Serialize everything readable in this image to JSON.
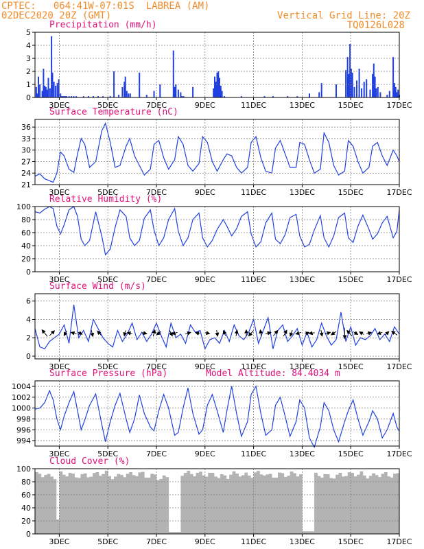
{
  "header": {
    "line1_left": "CPTEC:   064:41W-07:01S  LABREA (AM)",
    "line2_left": "02DEC2020 20Z (GMT)",
    "line1_right": "Vertical Grid Line: 20Z",
    "line2_right": "TQ0126L028"
  },
  "colors": {
    "header": "#f28c28",
    "title": "#e0107a",
    "line": "#1f3fe0",
    "bar": "#1f3fe0",
    "cloud": "#b3b3b3",
    "grid": "#7f7f7f",
    "axis": "#000000",
    "wind_arrow": "#000000"
  },
  "x_ticks": [
    "3DEC",
    "5DEC",
    "7DEC",
    "9DEC",
    "11DEC",
    "13DEC",
    "15DEC",
    "17DEC"
  ],
  "chart_data": [
    {
      "id": "precip",
      "type": "bar",
      "title": "Precipitation (mm/h)",
      "ylim": [
        0,
        5
      ],
      "yticks": [
        0,
        1,
        2,
        3,
        4,
        5
      ],
      "time_range_days": [
        2.0,
        17.0
      ],
      "grid": "dotted",
      "x": [
        2.05,
        2.1,
        2.14,
        2.2,
        2.3,
        2.35,
        2.4,
        2.45,
        2.5,
        2.55,
        2.62,
        2.68,
        2.72,
        2.78,
        2.85,
        2.92,
        2.98,
        3.05,
        3.1,
        3.15,
        3.2,
        3.25,
        3.3,
        3.4,
        3.5,
        3.6,
        3.7,
        4.0,
        4.2,
        4.4,
        4.6,
        4.8,
        5.1,
        5.25,
        5.45,
        5.6,
        5.68,
        5.72,
        5.78,
        5.85,
        5.92,
        6.3,
        6.6,
        6.9,
        7.15,
        7.7,
        7.75,
        7.8,
        7.9,
        8.0,
        8.05,
        8.12,
        8.5,
        9.35,
        9.4,
        9.45,
        9.5,
        9.55,
        9.6,
        9.65,
        9.7,
        9.8,
        10.5,
        11.45,
        11.8,
        12.4,
        12.8,
        13.3,
        13.7,
        13.8,
        14.4,
        14.8,
        14.87,
        14.92,
        14.97,
        15.02,
        15.07,
        15.15,
        15.25,
        15.35,
        15.45,
        15.55,
        15.65,
        15.8,
        15.9,
        15.95,
        16.0,
        16.05,
        16.12,
        16.22,
        16.5,
        16.6,
        16.75,
        16.8,
        16.85,
        16.9,
        16.95,
        17.0
      ],
      "values": [
        0.8,
        0.3,
        1.6,
        1.0,
        0.5,
        2.2,
        0.9,
        0.8,
        0.6,
        1.5,
        0.7,
        4.7,
        1.9,
        1.2,
        0.9,
        1.1,
        1.4,
        0.3,
        0.1,
        0.1,
        0.1,
        0.1,
        0.1,
        0.1,
        0.1,
        0.1,
        0.1,
        0.1,
        0.1,
        0.1,
        0.1,
        0.1,
        0.1,
        2.0,
        0.2,
        0.8,
        1.2,
        1.6,
        0.5,
        0.3,
        0.3,
        1.9,
        0.2,
        0.5,
        1.0,
        3.6,
        0.8,
        1.0,
        0.6,
        0.4,
        0.1,
        0.1,
        0.8,
        0.7,
        1.6,
        1.2,
        1.9,
        2.0,
        1.5,
        0.9,
        0.5,
        0.1,
        0.1,
        0.1,
        0.1,
        0.1,
        0.1,
        0.3,
        0.4,
        1.1,
        1.0,
        2.1,
        3.1,
        1.8,
        4.1,
        2.2,
        1.9,
        0.8,
        1.3,
        2.2,
        0.7,
        1.2,
        1.4,
        0.6,
        1.8,
        2.6,
        1.6,
        0.7,
        0.8,
        0.4,
        0.2,
        0.5,
        3.1,
        1.1,
        0.8,
        0.4,
        0.6,
        0.2
      ]
    },
    {
      "id": "temp",
      "type": "line",
      "title": "Surface Temperature (nC)",
      "ylim": [
        21,
        38
      ],
      "yticks": [
        21,
        24,
        27,
        30,
        33,
        36
      ],
      "time_range_days": [
        2.0,
        17.0
      ],
      "grid": "dotted",
      "x": [
        2.0,
        2.2,
        2.4,
        2.6,
        2.75,
        2.9,
        3.05,
        3.2,
        3.4,
        3.6,
        3.75,
        3.9,
        4.05,
        4.25,
        4.5,
        4.75,
        4.9,
        5.1,
        5.3,
        5.5,
        5.75,
        5.9,
        6.1,
        6.3,
        6.5,
        6.75,
        6.9,
        7.1,
        7.3,
        7.5,
        7.75,
        7.9,
        8.1,
        8.3,
        8.5,
        8.75,
        8.9,
        9.1,
        9.3,
        9.5,
        9.75,
        9.9,
        10.1,
        10.3,
        10.5,
        10.75,
        10.9,
        11.1,
        11.3,
        11.5,
        11.75,
        11.9,
        12.1,
        12.3,
        12.5,
        12.75,
        12.9,
        13.1,
        13.3,
        13.5,
        13.75,
        13.9,
        14.1,
        14.3,
        14.5,
        14.75,
        14.9,
        15.1,
        15.3,
        15.5,
        15.75,
        15.9,
        16.1,
        16.3,
        16.5,
        16.75,
        16.9,
        17.0
      ],
      "values": [
        23.2,
        23.8,
        22.5,
        22.0,
        21.6,
        24.0,
        29.5,
        28.5,
        25.0,
        24.2,
        29.0,
        33.0,
        31.5,
        25.5,
        27.0,
        35.0,
        37.0,
        32.0,
        25.5,
        26.0,
        31.0,
        33.0,
        28.5,
        26.0,
        23.5,
        25.0,
        31.5,
        32.5,
        28.0,
        25.0,
        27.5,
        33.5,
        31.5,
        26.0,
        24.5,
        26.5,
        33.5,
        32.0,
        27.0,
        24.5,
        27.5,
        29.0,
        28.5,
        25.5,
        24.0,
        25.5,
        32.0,
        33.5,
        28.0,
        24.5,
        24.0,
        30.5,
        32.5,
        29.0,
        25.5,
        25.5,
        32.0,
        31.5,
        27.5,
        24.0,
        25.0,
        34.5,
        32.0,
        26.0,
        23.5,
        24.5,
        32.5,
        31.0,
        27.0,
        24.0,
        25.5,
        31.0,
        32.0,
        28.5,
        26.0,
        30.0,
        28.5,
        27.0
      ]
    },
    {
      "id": "rh",
      "type": "line",
      "title": "Relative Humidity (%)",
      "ylim": [
        0,
        100
      ],
      "yticks": [
        0,
        20,
        40,
        60,
        80,
        100
      ],
      "time_range_days": [
        2.0,
        17.0
      ],
      "grid": "dotted",
      "x": [
        2.0,
        2.2,
        2.4,
        2.6,
        2.75,
        2.9,
        3.05,
        3.2,
        3.4,
        3.6,
        3.75,
        3.9,
        4.05,
        4.25,
        4.5,
        4.75,
        4.9,
        5.1,
        5.3,
        5.5,
        5.75,
        5.9,
        6.1,
        6.3,
        6.5,
        6.75,
        6.9,
        7.1,
        7.3,
        7.5,
        7.75,
        7.9,
        8.1,
        8.3,
        8.5,
        8.75,
        8.9,
        9.1,
        9.3,
        9.5,
        9.75,
        9.9,
        10.1,
        10.3,
        10.5,
        10.75,
        10.9,
        11.1,
        11.3,
        11.5,
        11.75,
        11.9,
        12.1,
        12.3,
        12.5,
        12.75,
        12.9,
        13.1,
        13.3,
        13.5,
        13.75,
        13.9,
        14.1,
        14.3,
        14.5,
        14.75,
        14.9,
        15.1,
        15.3,
        15.5,
        15.75,
        15.9,
        16.1,
        16.3,
        16.5,
        16.75,
        16.9,
        17.0
      ],
      "values": [
        92,
        90,
        96,
        100,
        97,
        70,
        58,
        72,
        95,
        100,
        85,
        50,
        40,
        48,
        92,
        55,
        26,
        35,
        68,
        95,
        85,
        52,
        40,
        48,
        82,
        95,
        64,
        40,
        52,
        80,
        97,
        62,
        40,
        52,
        80,
        90,
        52,
        38,
        48,
        65,
        80,
        70,
        55,
        66,
        85,
        92,
        58,
        38,
        46,
        75,
        90,
        50,
        43,
        57,
        83,
        88,
        55,
        38,
        42,
        64,
        86,
        52,
        38,
        55,
        83,
        90,
        52,
        45,
        70,
        87,
        65,
        50,
        58,
        75,
        85,
        52,
        62,
        95
      ]
    },
    {
      "id": "wind",
      "type": "line",
      "title": "Surface Wind (m/s)",
      "ylim": [
        -0.3,
        6.8
      ],
      "yticks": [
        0,
        2,
        4,
        6
      ],
      "time_range_days": [
        2.0,
        17.0
      ],
      "grid": "dotted",
      "x": [
        2.0,
        2.2,
        2.4,
        2.6,
        2.8,
        3.0,
        3.2,
        3.4,
        3.6,
        3.8,
        4.0,
        4.2,
        4.4,
        4.6,
        4.8,
        5.0,
        5.2,
        5.4,
        5.6,
        5.8,
        6.0,
        6.2,
        6.4,
        6.6,
        6.8,
        7.0,
        7.2,
        7.4,
        7.6,
        7.8,
        8.0,
        8.2,
        8.4,
        8.6,
        8.8,
        9.0,
        9.2,
        9.4,
        9.6,
        9.8,
        10.0,
        10.2,
        10.4,
        10.6,
        10.8,
        11.0,
        11.2,
        11.4,
        11.6,
        11.8,
        12.0,
        12.2,
        12.4,
        12.6,
        12.8,
        13.0,
        13.2,
        13.4,
        13.6,
        13.8,
        14.0,
        14.2,
        14.4,
        14.6,
        14.8,
        15.0,
        15.2,
        15.4,
        15.6,
        15.8,
        16.0,
        16.2,
        16.4,
        16.6,
        16.8,
        17.0
      ],
      "values": [
        3.0,
        1.0,
        0.8,
        1.6,
        2.0,
        2.4,
        3.4,
        1.4,
        5.6,
        2.0,
        2.8,
        1.6,
        4.0,
        3.0,
        2.0,
        1.4,
        1.0,
        2.8,
        1.6,
        2.4,
        3.6,
        1.8,
        2.6,
        1.6,
        2.4,
        3.6,
        2.2,
        1.0,
        3.6,
        2.0,
        2.4,
        1.4,
        3.4,
        2.6,
        2.8,
        0.8,
        1.8,
        2.0,
        1.4,
        2.8,
        1.6,
        3.4,
        2.2,
        1.8,
        2.6,
        4.0,
        1.4,
        2.8,
        4.2,
        0.8,
        2.8,
        3.4,
        1.6,
        2.2,
        3.0,
        1.2,
        2.6,
        1.0,
        1.8,
        3.6,
        2.2,
        1.2,
        1.8,
        4.8,
        1.6,
        3.2,
        1.2,
        2.0,
        1.8,
        2.2,
        3.0,
        1.8,
        2.4,
        1.6,
        3.2,
        2.4
      ],
      "vectors": [
        {
          "t": 2.4,
          "u": -1.0,
          "v": 1.2
        },
        {
          "t": 2.7,
          "u": 0.9,
          "v": 0.9
        },
        {
          "t": 3.25,
          "u": -0.5,
          "v": -0.9
        },
        {
          "t": 3.6,
          "u": -1.0,
          "v": 0.3
        },
        {
          "t": 3.85,
          "u": 0.8,
          "v": -0.4
        },
        {
          "t": 4.35,
          "u": 0.3,
          "v": -1.2
        },
        {
          "t": 4.65,
          "u": -0.7,
          "v": 0.8
        },
        {
          "t": 5.7,
          "u": -0.2,
          "v": -1.0
        },
        {
          "t": 5.9,
          "u": -0.9,
          "v": 0.2
        },
        {
          "t": 6.5,
          "u": 0.9,
          "v": -0.2
        },
        {
          "t": 6.9,
          "u": 0.3,
          "v": 1.2
        },
        {
          "t": 7.1,
          "u": -0.8,
          "v": -0.6
        },
        {
          "t": 7.6,
          "u": 0.5,
          "v": -1.0
        },
        {
          "t": 7.75,
          "u": -1.0,
          "v": -0.3
        },
        {
          "t": 8.3,
          "u": 1.0,
          "v": 0.3
        },
        {
          "t": 8.7,
          "u": -0.8,
          "v": 0.2
        },
        {
          "t": 9.1,
          "u": 0.8,
          "v": -0.2
        },
        {
          "t": 9.5,
          "u": 0.2,
          "v": -1.1
        },
        {
          "t": 9.8,
          "u": -0.4,
          "v": 0.9
        },
        {
          "t": 10.3,
          "u": 0.2,
          "v": 1.1
        },
        {
          "t": 10.7,
          "u": 0.0,
          "v": 1.2
        },
        {
          "t": 10.9,
          "u": -0.9,
          "v": -1.0
        },
        {
          "t": 11.3,
          "u": -0.2,
          "v": 1.2
        },
        {
          "t": 11.6,
          "u": 1.0,
          "v": 0.3
        },
        {
          "t": 11.9,
          "u": 0.8,
          "v": 1.0
        },
        {
          "t": 12.3,
          "u": 0.6,
          "v": 1.1
        },
        {
          "t": 12.55,
          "u": -0.4,
          "v": -1.1
        },
        {
          "t": 12.85,
          "u": -1.0,
          "v": -0.3
        },
        {
          "t": 13.2,
          "u": 0.8,
          "v": 0.3
        },
        {
          "t": 13.4,
          "u": -1.0,
          "v": -0.2
        },
        {
          "t": 13.8,
          "u": 0.2,
          "v": -1.1
        },
        {
          "t": 14.05,
          "u": 1.0,
          "v": 0.3
        },
        {
          "t": 14.3,
          "u": -0.9,
          "v": -0.6
        },
        {
          "t": 14.75,
          "u": 0.1,
          "v": -2.0
        },
        {
          "t": 14.95,
          "u": -0.9,
          "v": 1.0
        },
        {
          "t": 15.2,
          "u": 0.8,
          "v": -0.5
        },
        {
          "t": 15.45,
          "u": -0.8,
          "v": 0.5
        },
        {
          "t": 15.75,
          "u": 0.9,
          "v": 0.3
        },
        {
          "t": 16.2,
          "u": -0.9,
          "v": -0.3
        },
        {
          "t": 16.5,
          "u": 0.6,
          "v": 0.6
        },
        {
          "t": 16.8,
          "u": -1.0,
          "v": 0.7
        }
      ]
    },
    {
      "id": "pressure",
      "type": "line",
      "title": "Surface Pressure (hPa)",
      "subtitle": "Model Altitude: 84.4034 m",
      "ylim": [
        993,
        1005
      ],
      "yticks": [
        994,
        996,
        998,
        1000,
        1002,
        1004
      ],
      "time_range_days": [
        2.0,
        17.0
      ],
      "grid": "dotted",
      "x": [
        2.0,
        2.2,
        2.4,
        2.6,
        2.75,
        2.9,
        3.05,
        3.2,
        3.4,
        3.6,
        3.75,
        3.9,
        4.05,
        4.25,
        4.5,
        4.75,
        4.9,
        5.1,
        5.3,
        5.5,
        5.75,
        5.9,
        6.1,
        6.3,
        6.5,
        6.75,
        6.9,
        7.1,
        7.3,
        7.5,
        7.75,
        7.9,
        8.1,
        8.3,
        8.5,
        8.75,
        8.9,
        9.1,
        9.3,
        9.5,
        9.75,
        9.9,
        10.1,
        10.3,
        10.5,
        10.75,
        10.9,
        11.1,
        11.3,
        11.5,
        11.75,
        11.9,
        12.1,
        12.3,
        12.5,
        12.75,
        12.9,
        13.1,
        13.3,
        13.5,
        13.75,
        13.9,
        14.1,
        14.3,
        14.5,
        14.75,
        14.9,
        15.1,
        15.3,
        15.5,
        15.75,
        15.9,
        16.1,
        16.3,
        16.5,
        16.75,
        16.9,
        17.0
      ],
      "values": [
        999.8,
        1000.0,
        1001.0,
        1003.2,
        1001.5,
        998.0,
        996.0,
        998.5,
        1001.0,
        1003.0,
        999.5,
        996.0,
        997.8,
        1000.5,
        1002.6,
        997.0,
        993.8,
        997.5,
        1000.5,
        1002.7,
        998.0,
        995.5,
        998.0,
        1002.4,
        999.0,
        996.5,
        995.8,
        999.5,
        1002.5,
        1000.0,
        995.0,
        995.5,
        1000.0,
        1003.7,
        999.0,
        995.2,
        996.0,
        1000.5,
        1002.5,
        999.5,
        995.5,
        999.5,
        1004.0,
        999.0,
        994.8,
        997.5,
        1002.5,
        1004.0,
        999.0,
        995.0,
        996.0,
        1000.5,
        1002.0,
        998.5,
        994.8,
        997.5,
        1001.5,
        1000.0,
        994.5,
        992.8,
        996.5,
        1001.0,
        999.5,
        996.0,
        993.8,
        997.5,
        999.5,
        1001.5,
        998.0,
        995.0,
        997.5,
        999.5,
        998.0,
        994.5,
        996.0,
        999.0,
        996.5,
        995.7
      ]
    },
    {
      "id": "cloud",
      "type": "bar",
      "title": "Cloud Cover (%)",
      "ylim": [
        0,
        100
      ],
      "yticks": [
        0,
        20,
        40,
        60,
        80,
        100
      ],
      "time_range_days": [
        2.0,
        17.0
      ],
      "grid": "dotted",
      "x": [
        2.0,
        2.5,
        2.8,
        3.0,
        3.5,
        4.0,
        4.5,
        5.0,
        5.5,
        6.0,
        6.5,
        7.0,
        7.5,
        8.0,
        8.5,
        9.0,
        9.5,
        10.0,
        10.5,
        11.0,
        11.5,
        12.0,
        12.5,
        13.0,
        13.5,
        14.0,
        14.5,
        15.0,
        15.5,
        16.0,
        16.5,
        17.0
      ],
      "values": [
        95,
        92,
        22,
        96,
        93,
        94,
        97,
        92,
        95,
        96,
        93,
        90,
        3,
        97,
        96,
        95,
        92,
        96,
        94,
        97,
        93,
        95,
        96,
        4,
        94,
        92,
        95,
        96,
        93,
        95,
        94,
        97
      ]
    }
  ]
}
